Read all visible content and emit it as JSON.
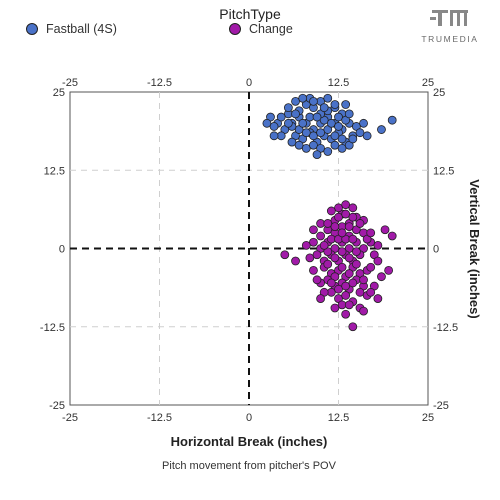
{
  "legend": {
    "title": "PitchType",
    "items": [
      {
        "label": "Fastball (4S)",
        "color": "#4a72c8"
      },
      {
        "label": "Change",
        "color": "#a11aa8"
      }
    ]
  },
  "brand": {
    "text": "TRUMEDIA",
    "icon": "trumedia-logo-icon"
  },
  "chart_data": {
    "type": "scatter",
    "title": "",
    "xlabel": "Horizontal Break (inches)",
    "ylabel": "Vertical Break (inches)",
    "caption": "Pitch movement from pitcher's POV",
    "xlim": [
      -25,
      25
    ],
    "ylim": [
      -25,
      25
    ],
    "xticks": [
      "-25",
      "-12.5",
      "0",
      "12.5",
      "25"
    ],
    "yticks": [
      "25",
      "12.5",
      "0",
      "-12.5",
      "-25"
    ],
    "grid": true,
    "legend_position": "top",
    "series": [
      {
        "name": "Fastball (4S)",
        "color": "#4a72c8",
        "points": [
          [
            4.0,
            20.0
          ],
          [
            5.0,
            19.0
          ],
          [
            6.0,
            20.0
          ],
          [
            7.0,
            21.0
          ],
          [
            8.0,
            20.0
          ],
          [
            9.0,
            19.0
          ],
          [
            10.0,
            20.0
          ],
          [
            11.0,
            21.0
          ],
          [
            12.0,
            20.0
          ],
          [
            13.0,
            19.0
          ],
          [
            14.0,
            20.0
          ],
          [
            6.5,
            18.0
          ],
          [
            7.5,
            17.5
          ],
          [
            8.5,
            18.5
          ],
          [
            9.5,
            17.0
          ],
          [
            10.5,
            18.0
          ],
          [
            11.5,
            17.5
          ],
          [
            12.5,
            18.5
          ],
          [
            13.5,
            17.0
          ],
          [
            7.0,
            22.0
          ],
          [
            8.0,
            23.0
          ],
          [
            9.0,
            22.5
          ],
          [
            10.0,
            23.5
          ],
          [
            11.0,
            22.0
          ],
          [
            12.0,
            22.5
          ],
          [
            13.0,
            21.5
          ],
          [
            5.5,
            21.5
          ],
          [
            6.0,
            17.0
          ],
          [
            7.0,
            16.5
          ],
          [
            8.0,
            16.0
          ],
          [
            9.0,
            16.5
          ],
          [
            10.0,
            16.0
          ],
          [
            11.0,
            15.5
          ],
          [
            12.0,
            16.5
          ],
          [
            13.0,
            16.0
          ],
          [
            14.5,
            18.0
          ],
          [
            15.0,
            19.5
          ],
          [
            3.0,
            21.0
          ],
          [
            3.5,
            19.5
          ],
          [
            4.5,
            18.0
          ],
          [
            5.5,
            22.5
          ],
          [
            6.5,
            23.5
          ],
          [
            8.5,
            24.0
          ],
          [
            11.0,
            24.0
          ],
          [
            13.5,
            23.0
          ],
          [
            16.0,
            20.0
          ],
          [
            14.0,
            16.5
          ],
          [
            9.5,
            15.0
          ],
          [
            7.0,
            19.0
          ],
          [
            8.5,
            21.0
          ],
          [
            10.5,
            20.5
          ],
          [
            12.5,
            21.0
          ],
          [
            9.0,
            18.0
          ],
          [
            11.0,
            19.0
          ],
          [
            6.0,
            19.5
          ],
          [
            4.5,
            21.0
          ],
          [
            12.0,
            18.0
          ],
          [
            13.5,
            20.5
          ],
          [
            10.0,
            21.5
          ],
          [
            7.5,
            20.0
          ],
          [
            8.0,
            18.5
          ],
          [
            10.0,
            18.5
          ],
          [
            11.5,
            20.0
          ],
          [
            12.5,
            19.5
          ],
          [
            9.5,
            21.0
          ],
          [
            14.0,
            21.5
          ],
          [
            5.5,
            20.0
          ],
          [
            6.5,
            21.5
          ],
          [
            15.5,
            18.5
          ],
          [
            3.5,
            18.0
          ],
          [
            20.0,
            20.5
          ],
          [
            18.5,
            19.0
          ],
          [
            16.5,
            18.0
          ],
          [
            14.5,
            17.5
          ],
          [
            2.5,
            20.0
          ],
          [
            10.5,
            22.5
          ],
          [
            9.0,
            23.5
          ],
          [
            12.0,
            23.0
          ],
          [
            7.5,
            24.0
          ],
          [
            13.0,
            17.5
          ]
        ]
      },
      {
        "name": "Change",
        "color": "#a11aa8",
        "points": [
          [
            9.0,
            1.0
          ],
          [
            10.0,
            0.0
          ],
          [
            11.0,
            1.0
          ],
          [
            12.0,
            0.0
          ],
          [
            13.0,
            1.0
          ],
          [
            14.0,
            0.0
          ],
          [
            15.0,
            1.0
          ],
          [
            16.0,
            0.0
          ],
          [
            9.5,
            -1.0
          ],
          [
            10.5,
            -2.0
          ],
          [
            11.5,
            -1.0
          ],
          [
            12.5,
            -2.0
          ],
          [
            13.5,
            -1.0
          ],
          [
            14.5,
            -2.0
          ],
          [
            15.5,
            -1.0
          ],
          [
            10.0,
            2.0
          ],
          [
            11.0,
            3.0
          ],
          [
            12.0,
            2.5
          ],
          [
            13.0,
            3.5
          ],
          [
            14.0,
            2.0
          ],
          [
            15.0,
            3.0
          ],
          [
            16.0,
            2.5
          ],
          [
            10.5,
            -3.0
          ],
          [
            11.5,
            -4.0
          ],
          [
            12.5,
            -3.5
          ],
          [
            13.5,
            -4.5
          ],
          [
            14.5,
            -3.0
          ],
          [
            15.5,
            -4.0
          ],
          [
            16.5,
            -3.5
          ],
          [
            11.0,
            -5.0
          ],
          [
            12.0,
            -6.0
          ],
          [
            13.0,
            -5.5
          ],
          [
            14.0,
            -6.5
          ],
          [
            15.0,
            -5.0
          ],
          [
            16.0,
            -6.0
          ],
          [
            11.5,
            -7.0
          ],
          [
            12.5,
            -8.0
          ],
          [
            13.5,
            -7.5
          ],
          [
            14.5,
            -8.5
          ],
          [
            15.5,
            -7.0
          ],
          [
            12.0,
            4.5
          ],
          [
            13.0,
            5.5
          ],
          [
            14.0,
            4.0
          ],
          [
            15.0,
            5.0
          ],
          [
            12.5,
            6.5
          ],
          [
            13.5,
            7.0
          ],
          [
            11.5,
            6.0
          ],
          [
            14.5,
            6.5
          ],
          [
            10.0,
            4.0
          ],
          [
            9.0,
            3.0
          ],
          [
            8.5,
            -1.5
          ],
          [
            8.0,
            0.5
          ],
          [
            9.0,
            -3.5
          ],
          [
            10.0,
            -5.5
          ],
          [
            17.0,
            1.0
          ],
          [
            17.5,
            -1.0
          ],
          [
            18.0,
            0.5
          ],
          [
            17.0,
            -3.0
          ],
          [
            18.5,
            -4.5
          ],
          [
            17.5,
            -6.0
          ],
          [
            16.5,
            -7.5
          ],
          [
            17.0,
            -7.0
          ],
          [
            18.0,
            -8.0
          ],
          [
            19.0,
            3.0
          ],
          [
            20.0,
            2.0
          ],
          [
            19.5,
            -3.5
          ],
          [
            16.0,
            4.5
          ],
          [
            5.0,
            -1.0
          ],
          [
            6.5,
            -2.0
          ],
          [
            14.5,
            -12.5
          ],
          [
            11.0,
            -0.5
          ],
          [
            12.0,
            -1.5
          ],
          [
            13.0,
            -0.5
          ],
          [
            14.0,
            -1.5
          ],
          [
            15.0,
            -0.5
          ],
          [
            11.5,
            1.5
          ],
          [
            12.5,
            1.5
          ],
          [
            13.5,
            1.5
          ],
          [
            14.5,
            1.5
          ],
          [
            10.5,
            0.5
          ],
          [
            12.0,
            -4.5
          ],
          [
            13.0,
            -3.0
          ],
          [
            14.0,
            -4.0
          ],
          [
            11.0,
            -2.5
          ],
          [
            15.0,
            -2.5
          ],
          [
            12.5,
            -6.5
          ],
          [
            13.5,
            -6.0
          ],
          [
            11.5,
            -5.5
          ],
          [
            14.5,
            -5.5
          ],
          [
            13.0,
            -9.0
          ],
          [
            12.0,
            -9.5
          ],
          [
            14.0,
            -9.0
          ],
          [
            10.5,
            -7.0
          ],
          [
            16.0,
            -5.0
          ],
          [
            13.0,
            2.5
          ],
          [
            14.0,
            3.5
          ],
          [
            12.0,
            3.5
          ],
          [
            11.0,
            4.0
          ],
          [
            15.5,
            4.0
          ],
          [
            16.5,
            1.5
          ],
          [
            9.5,
            -5.0
          ],
          [
            17.0,
            2.5
          ],
          [
            18.0,
            -2.0
          ],
          [
            13.5,
            -10.5
          ],
          [
            10.0,
            -8.0
          ],
          [
            15.5,
            -9.5
          ],
          [
            16.0,
            -10.0
          ],
          [
            12.5,
            5.0
          ],
          [
            13.5,
            5.5
          ],
          [
            14.5,
            5.0
          ]
        ]
      }
    ]
  }
}
